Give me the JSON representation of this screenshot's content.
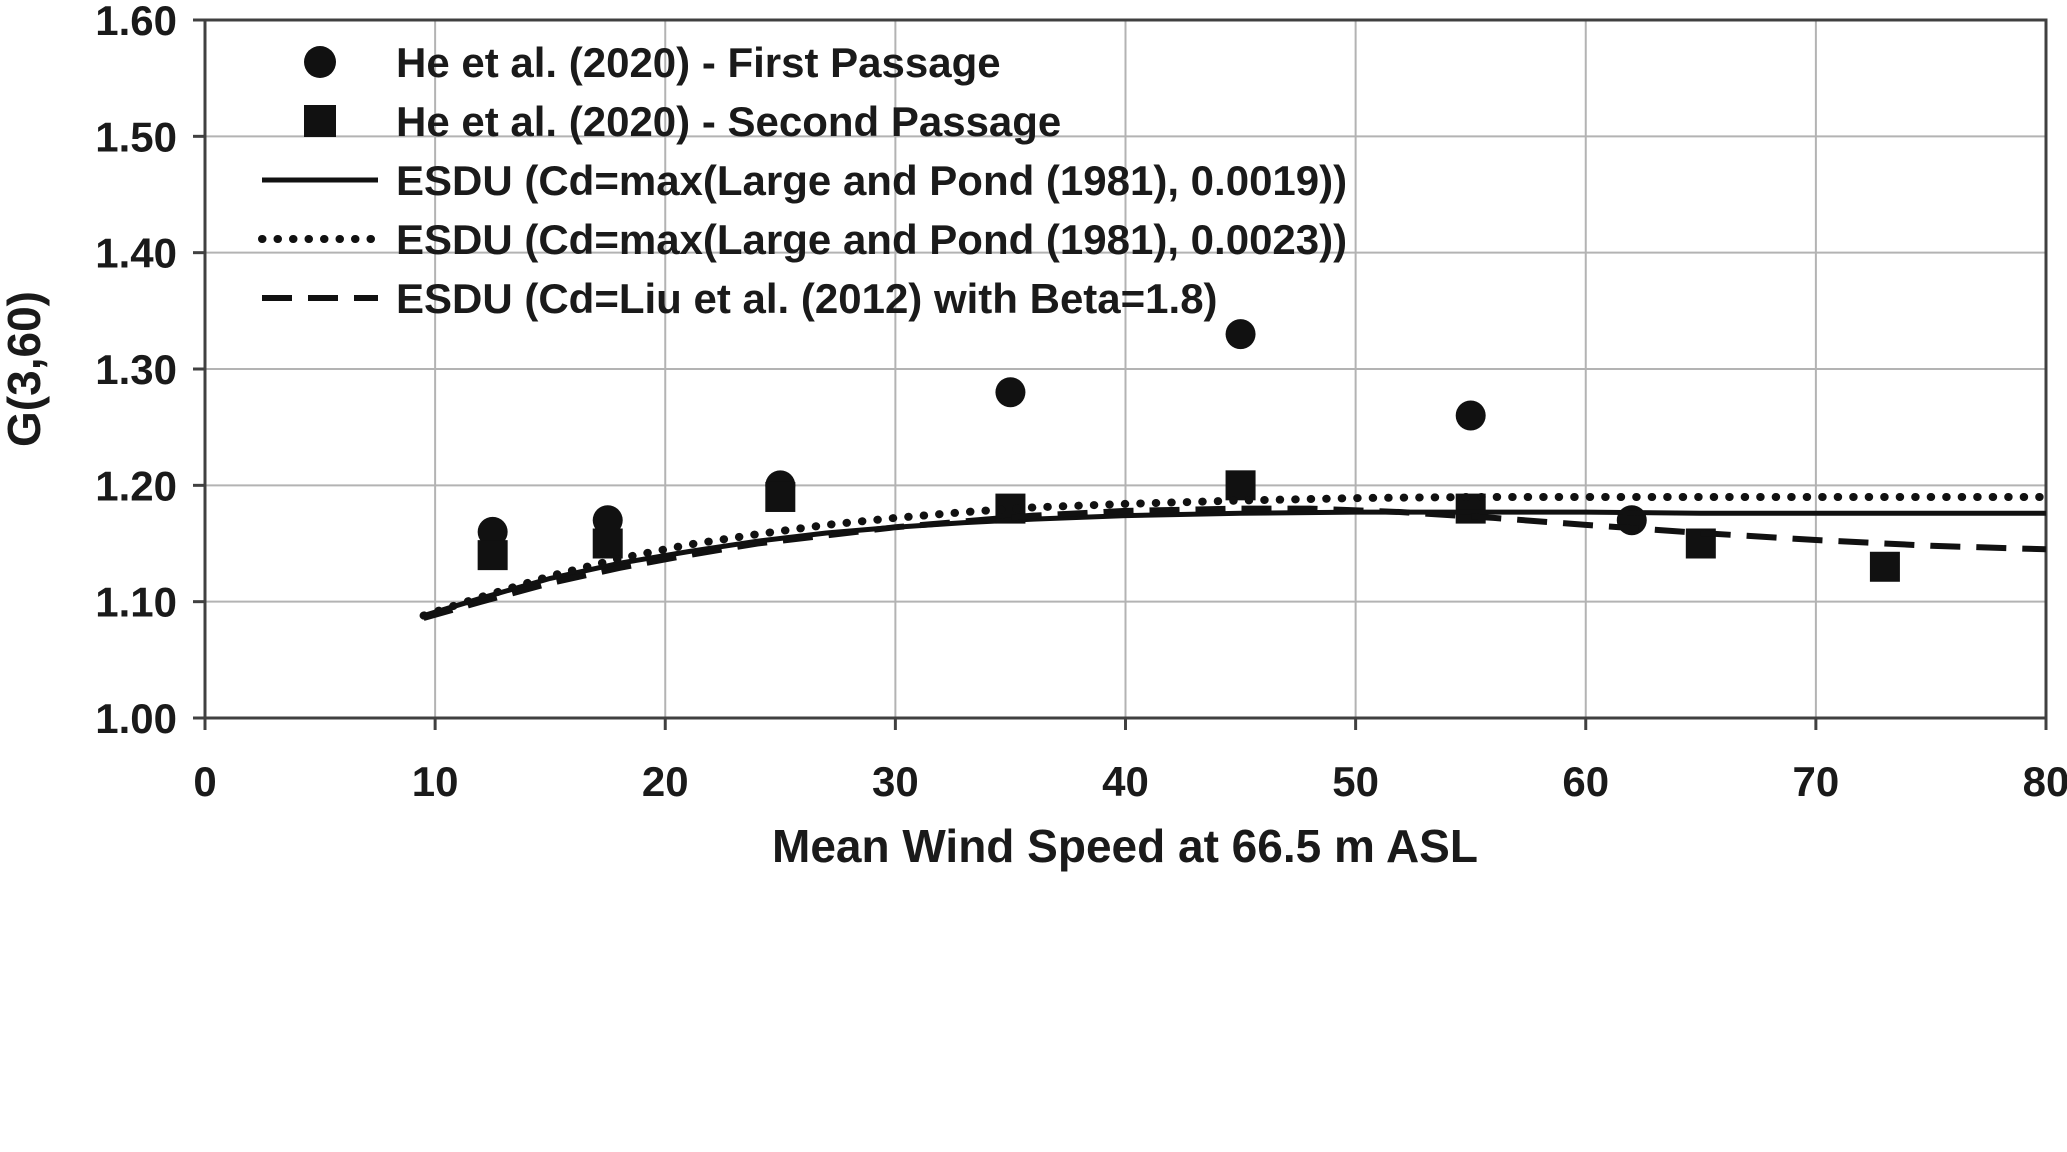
{
  "figure": {
    "background": "#ffffff",
    "text_color": "#1a1a1a",
    "grid_color": "#b3b3b3",
    "axis_color": "#404040",
    "series_color": "#111111"
  },
  "chart_data": {
    "type": "line",
    "title": "",
    "xlabel": "Mean Wind Speed at 66.5 m ASL",
    "ylabel": "G(3,60)",
    "xlim": [
      0,
      80
    ],
    "ylim": [
      1.0,
      1.6
    ],
    "grid": true,
    "legend_position": "top-left-inside",
    "xticks": [
      0,
      10,
      20,
      30,
      40,
      50,
      60,
      70,
      80
    ],
    "xtick_labels": [
      "0",
      "10",
      "20",
      "30",
      "40",
      "50",
      "60",
      "70",
      "80"
    ],
    "yticks": [
      1.0,
      1.1,
      1.2,
      1.3,
      1.4,
      1.5,
      1.6
    ],
    "ytick_labels": [
      "1.00",
      "1.10",
      "1.20",
      "1.30",
      "1.40",
      "1.50",
      "1.60"
    ],
    "series": [
      {
        "name": "He et al. (2020) - First Passage",
        "kind": "scatter",
        "marker": "circle",
        "x": [
          12.5,
          17.5,
          25,
          35,
          45,
          55,
          62
        ],
        "y": [
          1.16,
          1.17,
          1.2,
          1.28,
          1.33,
          1.26,
          1.17
        ]
      },
      {
        "name": "He et al. (2020) - Second Passage",
        "kind": "scatter",
        "marker": "square",
        "x": [
          12.5,
          17.5,
          25,
          35,
          45,
          55,
          65,
          73
        ],
        "y": [
          1.14,
          1.15,
          1.19,
          1.18,
          1.2,
          1.18,
          1.15,
          1.13
        ]
      },
      {
        "name": "ESDU (Cd=max(Large and Pond (1981), 0.0019))",
        "kind": "line",
        "style": "solid",
        "x": [
          9.5,
          12,
          15,
          18,
          21,
          24,
          27,
          30,
          33,
          36,
          40,
          45,
          50,
          55,
          60,
          65,
          70,
          75,
          80
        ],
        "y": [
          1.088,
          1.103,
          1.12,
          1.133,
          1.143,
          1.152,
          1.159,
          1.164,
          1.168,
          1.171,
          1.174,
          1.176,
          1.177,
          1.177,
          1.177,
          1.176,
          1.176,
          1.176,
          1.176
        ]
      },
      {
        "name": "ESDU (Cd=max(Large and Pond (1981), 0.0023))",
        "kind": "line",
        "style": "dotted",
        "x": [
          9.5,
          12,
          15,
          18,
          21,
          24,
          27,
          30,
          33,
          36,
          40,
          45,
          50,
          55,
          60,
          65,
          70,
          75,
          80
        ],
        "y": [
          1.088,
          1.104,
          1.122,
          1.137,
          1.149,
          1.158,
          1.166,
          1.172,
          1.177,
          1.181,
          1.184,
          1.187,
          1.189,
          1.19,
          1.19,
          1.19,
          1.19,
          1.19,
          1.19
        ]
      },
      {
        "name": "ESDU (Cd=Liu et al. (2012) with Beta=1.8)",
        "kind": "line",
        "style": "dashed",
        "x": [
          9.5,
          12,
          15,
          18,
          21,
          24,
          27,
          30,
          33,
          36,
          40,
          45,
          48,
          52,
          56,
          60,
          65,
          70,
          75,
          80
        ],
        "y": [
          1.086,
          1.1,
          1.116,
          1.129,
          1.14,
          1.15,
          1.157,
          1.164,
          1.169,
          1.174,
          1.178,
          1.18,
          1.18,
          1.177,
          1.172,
          1.166,
          1.159,
          1.153,
          1.148,
          1.145
        ]
      }
    ]
  }
}
